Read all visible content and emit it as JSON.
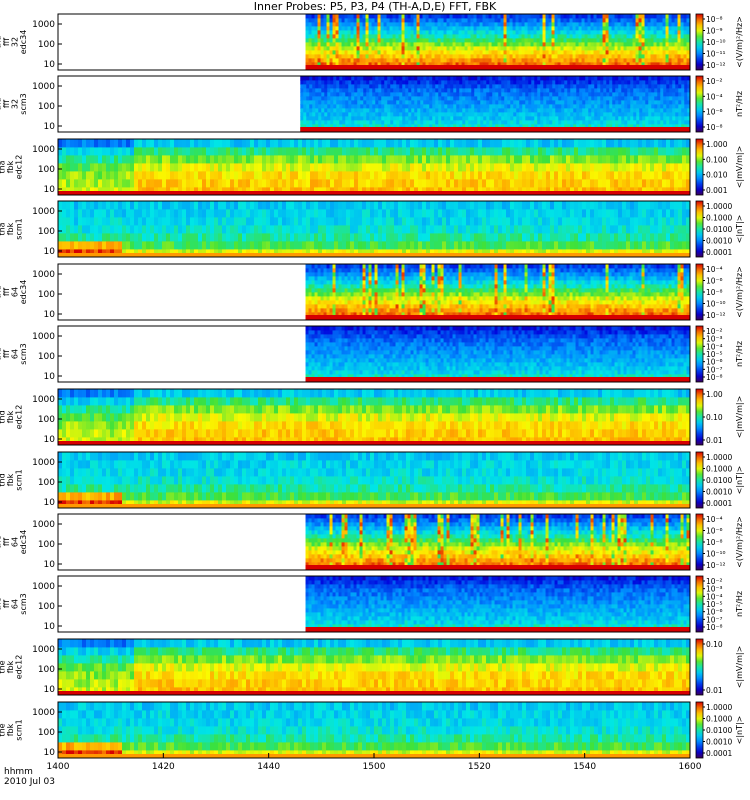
{
  "title": "Inner Probes: P5, P3, P4 (TH-A,D,E) FFT, FBK",
  "footer": {
    "row_label": "hhmm",
    "date": "2010 Jul 03",
    "time_ticks": [
      "1400",
      "1420",
      "1440",
      "1500",
      "1520",
      "1540",
      "1600"
    ]
  },
  "chart_data": {
    "type": "heatmap",
    "title": "Inner Probes: P5, P3, P4 (TH-A,D,E) FFT, FBK",
    "xlabel": "hhmm",
    "x_ticks": [
      "1400",
      "1420",
      "1440",
      "1500",
      "1520",
      "1540",
      "1600"
    ],
    "x_range_hhmm": [
      "1400",
      "1600"
    ],
    "panels": [
      {
        "probe": "tha",
        "label_lines": [
          "tha",
          "fff",
          "32",
          "edc34"
        ],
        "kind": "fff_e",
        "data_start_hhmm": "1447",
        "y_ticks": [
          "1000",
          "100",
          "10"
        ],
        "colorbar_unit": "<(V/m)²/Hz>",
        "colorbar_ticks": [
          "10⁻⁸",
          "10⁻⁹",
          "10⁻¹⁰",
          "10⁻¹¹",
          "10⁻¹²"
        ]
      },
      {
        "probe": "tha",
        "label_lines": [
          "tha",
          "fff",
          "32",
          "scm3"
        ],
        "kind": "fff_b",
        "data_start_hhmm": "1446",
        "y_ticks": [
          "1000",
          "100",
          "10"
        ],
        "colorbar_unit": "nT²/Hz",
        "colorbar_ticks": [
          "10⁻²",
          "10⁻⁴",
          "10⁻⁶",
          "10⁻⁸"
        ]
      },
      {
        "probe": "tha",
        "label_lines": [
          "tha",
          "fbk",
          "edc12"
        ],
        "kind": "fbk_e",
        "data_start_hhmm": "1400",
        "y_ticks": [
          "1000",
          "100",
          "10"
        ],
        "colorbar_unit": "<|mV/m|>",
        "colorbar_ticks": [
          "1.000",
          "0.100",
          "0.010",
          "0.001"
        ]
      },
      {
        "probe": "tha",
        "label_lines": [
          "tha",
          "fbk",
          "scm1"
        ],
        "kind": "fbk_b",
        "data_start_hhmm": "1400",
        "y_ticks": [
          "1000",
          "100",
          "10"
        ],
        "colorbar_unit": "<|nT|>",
        "colorbar_ticks": [
          "1.0000",
          "0.1000",
          "0.0100",
          "0.0010",
          "0.0001"
        ]
      },
      {
        "probe": "thd",
        "label_lines": [
          "thd",
          "fff",
          "64",
          "edc34"
        ],
        "kind": "fff_e",
        "data_start_hhmm": "1447",
        "y_ticks": [
          "1000",
          "100",
          "10"
        ],
        "colorbar_unit": "<(V/m)²/Hz>",
        "colorbar_ticks": [
          "10⁻⁴",
          "10⁻⁶",
          "10⁻⁸",
          "10⁻¹⁰",
          "10⁻¹²"
        ]
      },
      {
        "probe": "thd",
        "label_lines": [
          "thd",
          "fff",
          "64",
          "scm3"
        ],
        "kind": "fff_b",
        "data_start_hhmm": "1447",
        "y_ticks": [
          "1000",
          "100",
          "10"
        ],
        "colorbar_unit": "nT²/Hz",
        "colorbar_ticks": [
          "10⁻²",
          "10⁻³",
          "10⁻⁴",
          "10⁻⁵",
          "10⁻⁶",
          "10⁻⁷",
          "10⁻⁸"
        ]
      },
      {
        "probe": "thd",
        "label_lines": [
          "thd",
          "fbk",
          "edc12"
        ],
        "kind": "fbk_e",
        "data_start_hhmm": "1400",
        "y_ticks": [
          "1000",
          "100",
          "10"
        ],
        "colorbar_unit": "<|mV/m|>",
        "colorbar_ticks": [
          "1.00",
          "0.10",
          "0.01"
        ]
      },
      {
        "probe": "thd",
        "label_lines": [
          "thd",
          "fbk",
          "scm1"
        ],
        "kind": "fbk_b",
        "data_start_hhmm": "1400",
        "y_ticks": [
          "1000",
          "100",
          "10"
        ],
        "colorbar_unit": "<|nT|>",
        "colorbar_ticks": [
          "1.0000",
          "0.1000",
          "0.0100",
          "0.0010",
          "0.0001"
        ]
      },
      {
        "probe": "the",
        "label_lines": [
          "the",
          "fff",
          "64",
          "edc34"
        ],
        "kind": "fff_e",
        "data_start_hhmm": "1447",
        "y_ticks": [
          "1000",
          "100",
          "10"
        ],
        "colorbar_unit": "<(V/m)²/Hz>",
        "colorbar_ticks": [
          "10⁻⁴",
          "10⁻⁶",
          "10⁻⁸",
          "10⁻¹⁰",
          "10⁻¹²"
        ]
      },
      {
        "probe": "the",
        "label_lines": [
          "the",
          "fff",
          "64",
          "scm3"
        ],
        "kind": "fff_b",
        "data_start_hhmm": "1447",
        "y_ticks": [
          "1000",
          "100",
          "10"
        ],
        "colorbar_unit": "nT²/Hz",
        "colorbar_ticks": [
          "10⁻²",
          "10⁻³",
          "10⁻⁴",
          "10⁻⁵",
          "10⁻⁶",
          "10⁻⁷",
          "10⁻⁸"
        ]
      },
      {
        "probe": "the",
        "label_lines": [
          "the",
          "fbk",
          "edc12"
        ],
        "kind": "fbk_e",
        "data_start_hhmm": "1400",
        "y_ticks": [
          "1000",
          "100",
          "10"
        ],
        "colorbar_unit": "<|mV/m|>",
        "colorbar_ticks": [
          "0.10",
          "0.01"
        ]
      },
      {
        "probe": "the",
        "label_lines": [
          "the",
          "fbk",
          "scm1"
        ],
        "kind": "fbk_b",
        "data_start_hhmm": "1400",
        "y_ticks": [
          "1000",
          "100",
          "10"
        ],
        "colorbar_unit": "<|nT|>",
        "colorbar_ticks": [
          "1.0000",
          "0.1000",
          "0.0100",
          "0.0010",
          "0.0001"
        ]
      }
    ]
  }
}
